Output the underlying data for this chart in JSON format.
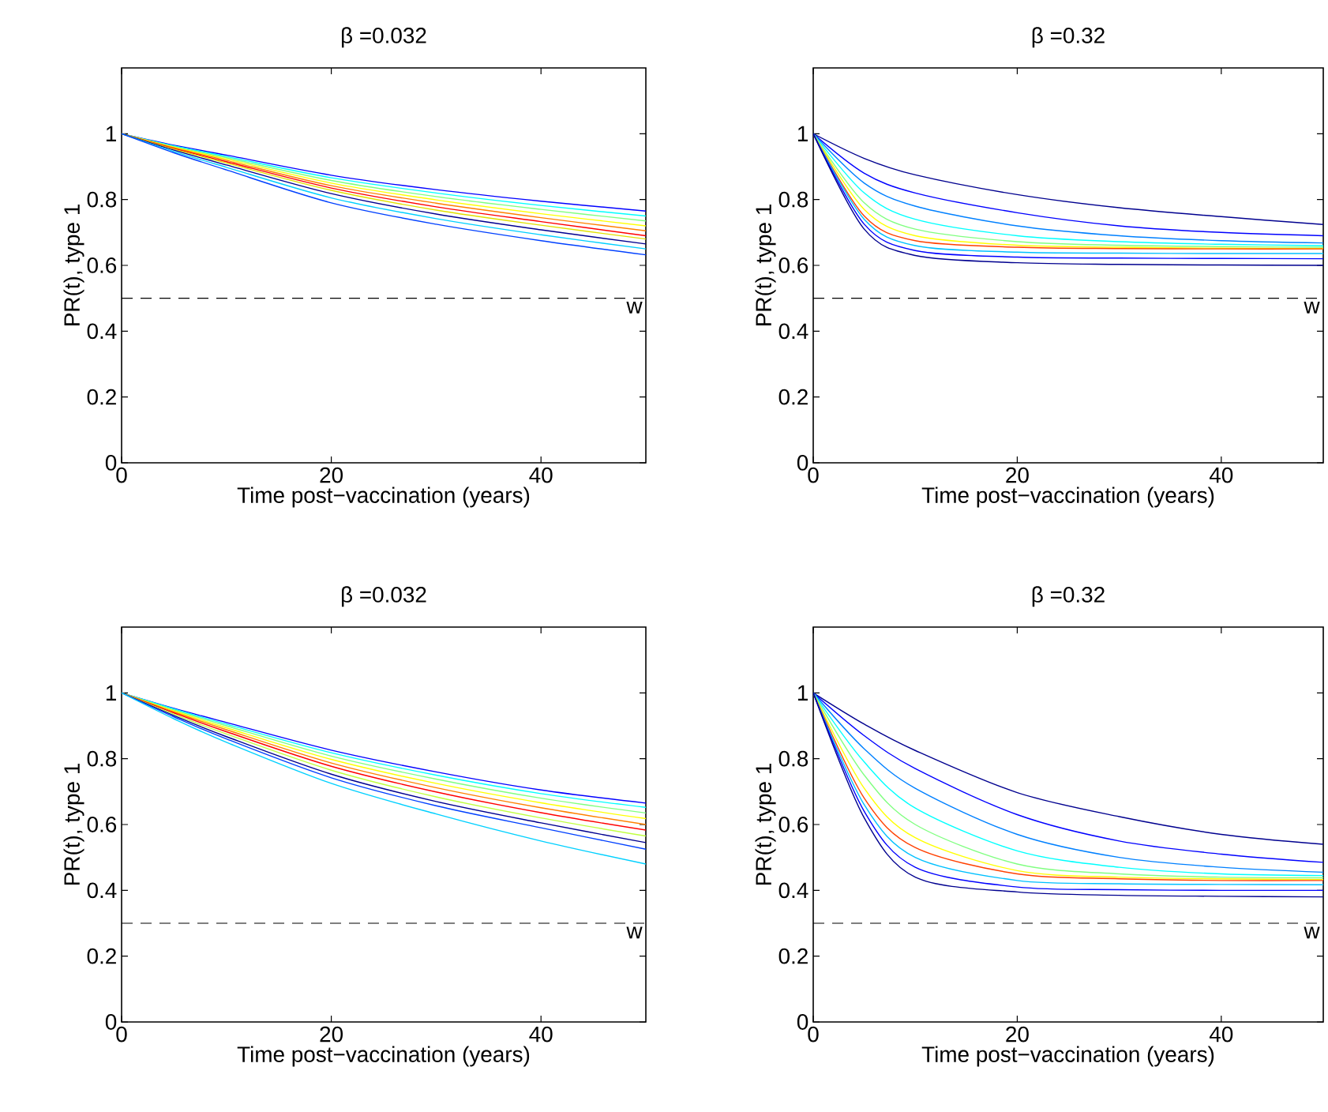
{
  "chart_data": [
    {
      "type": "line",
      "title": "β =0.032",
      "xlabel": "Time post−vaccination (years)",
      "ylabel": "PR(t), type 1",
      "x": [
        0,
        5,
        10,
        20,
        30,
        40,
        50
      ],
      "xlim": [
        0,
        50
      ],
      "ylim": [
        0,
        1.2
      ],
      "xticks": [
        0,
        20,
        40
      ],
      "yticks": [
        0,
        0.2,
        0.4,
        0.6,
        0.8,
        1
      ],
      "marker": "none",
      "line_style": "solid",
      "ref_lines": [
        {
          "axis": "y",
          "value": 0.5,
          "label": "w",
          "color": "#000000",
          "line_style": "dashed"
        }
      ],
      "series": [
        {
          "color": "#0000ff",
          "values": [
            1,
            0.965,
            0.935,
            0.874,
            0.83,
            0.795,
            0.765
          ]
        },
        {
          "color": "#00ffff",
          "values": [
            1,
            0.963,
            0.931,
            0.866,
            0.82,
            0.782,
            0.75
          ]
        },
        {
          "color": "#80ff80",
          "values": [
            1,
            0.961,
            0.927,
            0.858,
            0.809,
            0.77,
            0.735
          ]
        },
        {
          "color": "#ffff00",
          "values": [
            1,
            0.959,
            0.923,
            0.85,
            0.799,
            0.757,
            0.72
          ]
        },
        {
          "color": "#ff8000",
          "values": [
            1,
            0.957,
            0.919,
            0.842,
            0.789,
            0.745,
            0.705
          ]
        },
        {
          "color": "#ff0000",
          "values": [
            1,
            0.955,
            0.915,
            0.835,
            0.778,
            0.733,
            0.69
          ]
        },
        {
          "color": "#e0e000",
          "values": [
            1,
            0.953,
            0.911,
            0.828,
            0.768,
            0.722,
            0.68
          ]
        },
        {
          "color": "#00008f",
          "values": [
            1,
            0.95,
            0.905,
            0.818,
            0.756,
            0.708,
            0.665
          ]
        },
        {
          "color": "#00d0ff",
          "values": [
            1,
            0.946,
            0.898,
            0.805,
            0.742,
            0.693,
            0.65
          ]
        },
        {
          "color": "#0040ff",
          "values": [
            1,
            0.942,
            0.89,
            0.79,
            0.725,
            0.675,
            0.632
          ]
        }
      ]
    },
    {
      "type": "line",
      "title": "β =0.32",
      "xlabel": "Time post−vaccination (years)",
      "ylabel": "PR(t), type 1",
      "x": [
        0,
        5,
        10,
        20,
        30,
        40,
        50
      ],
      "xlim": [
        0,
        50
      ],
      "ylim": [
        0,
        1.2
      ],
      "xticks": [
        0,
        20,
        40
      ],
      "yticks": [
        0,
        0.2,
        0.4,
        0.6,
        0.8,
        1
      ],
      "marker": "none",
      "line_style": "solid",
      "ref_lines": [
        {
          "axis": "y",
          "value": 0.5,
          "label": "w",
          "color": "#000000",
          "line_style": "dashed"
        }
      ],
      "series": [
        {
          "color": "#00008f",
          "values": [
            1,
            0.925,
            0.875,
            0.815,
            0.775,
            0.748,
            0.724
          ]
        },
        {
          "color": "#0000ff",
          "values": [
            1,
            0.88,
            0.82,
            0.76,
            0.72,
            0.7,
            0.69
          ]
        },
        {
          "color": "#0080ff",
          "values": [
            1,
            0.85,
            0.78,
            0.72,
            0.69,
            0.675,
            0.668
          ]
        },
        {
          "color": "#00ffff",
          "values": [
            1,
            0.82,
            0.74,
            0.69,
            0.672,
            0.664,
            0.66
          ]
        },
        {
          "color": "#80ff80",
          "values": [
            1,
            0.79,
            0.71,
            0.672,
            0.661,
            0.657,
            0.655
          ]
        },
        {
          "color": "#ffff00",
          "values": [
            1,
            0.77,
            0.69,
            0.661,
            0.655,
            0.652,
            0.651
          ]
        },
        {
          "color": "#ff4000",
          "values": [
            1,
            0.75,
            0.675,
            0.655,
            0.651,
            0.65,
            0.65
          ]
        },
        {
          "color": "#00c0ff",
          "values": [
            1,
            0.74,
            0.66,
            0.64,
            0.637,
            0.636,
            0.636
          ]
        },
        {
          "color": "#0000ff",
          "values": [
            1,
            0.725,
            0.645,
            0.625,
            0.622,
            0.621,
            0.62
          ]
        },
        {
          "color": "#00008f",
          "values": [
            1,
            0.71,
            0.63,
            0.608,
            0.603,
            0.601,
            0.6
          ]
        }
      ]
    },
    {
      "type": "line",
      "title": "β =0.032",
      "xlabel": "Time post−vaccination (years)",
      "ylabel": "PR(t), type 1",
      "x": [
        0,
        5,
        10,
        20,
        30,
        40,
        50
      ],
      "xlim": [
        0,
        50
      ],
      "ylim": [
        0,
        1.2
      ],
      "xticks": [
        0,
        20,
        40
      ],
      "yticks": [
        0,
        0.2,
        0.4,
        0.6,
        0.8,
        1
      ],
      "marker": "none",
      "line_style": "solid",
      "ref_lines": [
        {
          "axis": "y",
          "value": 0.3,
          "label": "w",
          "color": "#000000",
          "line_style": "dashed"
        }
      ],
      "series": [
        {
          "color": "#0000ff",
          "values": [
            1,
            0.953,
            0.91,
            0.826,
            0.76,
            0.705,
            0.665
          ]
        },
        {
          "color": "#00ffff",
          "values": [
            1,
            0.951,
            0.905,
            0.818,
            0.75,
            0.694,
            0.652
          ]
        },
        {
          "color": "#80ff80",
          "values": [
            1,
            0.948,
            0.9,
            0.808,
            0.738,
            0.68,
            0.635
          ]
        },
        {
          "color": "#ffff00",
          "values": [
            1,
            0.945,
            0.894,
            0.798,
            0.725,
            0.666,
            0.618
          ]
        },
        {
          "color": "#ff8000",
          "values": [
            1,
            0.942,
            0.888,
            0.787,
            0.712,
            0.651,
            0.6
          ]
        },
        {
          "color": "#ff0000",
          "values": [
            1,
            0.939,
            0.882,
            0.777,
            0.699,
            0.636,
            0.583
          ]
        },
        {
          "color": "#c0ff40",
          "values": [
            1,
            0.935,
            0.875,
            0.765,
            0.684,
            0.62,
            0.565
          ]
        },
        {
          "color": "#00008f",
          "values": [
            1,
            0.931,
            0.867,
            0.753,
            0.67,
            0.605,
            0.545
          ]
        },
        {
          "color": "#0040ff",
          "values": [
            1,
            0.927,
            0.86,
            0.742,
            0.657,
            0.59,
            0.525
          ]
        },
        {
          "color": "#00d0ff",
          "values": [
            1,
            0.921,
            0.85,
            0.725,
            0.632,
            0.55,
            0.48
          ]
        }
      ]
    },
    {
      "type": "line",
      "title": "β =0.32",
      "xlabel": "Time post−vaccination (years)",
      "ylabel": "PR(t), type 1",
      "x": [
        0,
        5,
        10,
        20,
        30,
        40,
        50
      ],
      "xlim": [
        0,
        50
      ],
      "ylim": [
        0,
        1.2
      ],
      "xticks": [
        0,
        20,
        40
      ],
      "yticks": [
        0,
        0.2,
        0.4,
        0.6,
        0.8,
        1
      ],
      "marker": "none",
      "line_style": "solid",
      "ref_lines": [
        {
          "axis": "y",
          "value": 0.3,
          "label": "w",
          "color": "#000000",
          "line_style": "dashed"
        }
      ],
      "series": [
        {
          "color": "#00008f",
          "values": [
            1,
            0.905,
            0.825,
            0.697,
            0.624,
            0.57,
            0.54
          ]
        },
        {
          "color": "#0000ff",
          "values": [
            1,
            0.87,
            0.77,
            0.63,
            0.55,
            0.51,
            0.485
          ]
        },
        {
          "color": "#0080ff",
          "values": [
            1,
            0.83,
            0.71,
            0.57,
            0.5,
            0.47,
            0.455
          ]
        },
        {
          "color": "#00ffff",
          "values": [
            1,
            0.79,
            0.65,
            0.52,
            0.47,
            0.45,
            0.445
          ]
        },
        {
          "color": "#80ff80",
          "values": [
            1,
            0.75,
            0.6,
            0.48,
            0.45,
            0.44,
            0.438
          ]
        },
        {
          "color": "#ffff00",
          "values": [
            1,
            0.71,
            0.56,
            0.46,
            0.44,
            0.435,
            0.433
          ]
        },
        {
          "color": "#ff4000",
          "values": [
            1,
            0.68,
            0.53,
            0.45,
            0.435,
            0.43,
            0.43
          ]
        },
        {
          "color": "#00c0ff",
          "values": [
            1,
            0.66,
            0.5,
            0.43,
            0.42,
            0.418,
            0.417
          ]
        },
        {
          "color": "#0000ff",
          "values": [
            1,
            0.64,
            0.47,
            0.41,
            0.402,
            0.4,
            0.4
          ]
        },
        {
          "color": "#00008f",
          "values": [
            1,
            0.62,
            0.44,
            0.395,
            0.385,
            0.382,
            0.38
          ]
        }
      ]
    }
  ]
}
